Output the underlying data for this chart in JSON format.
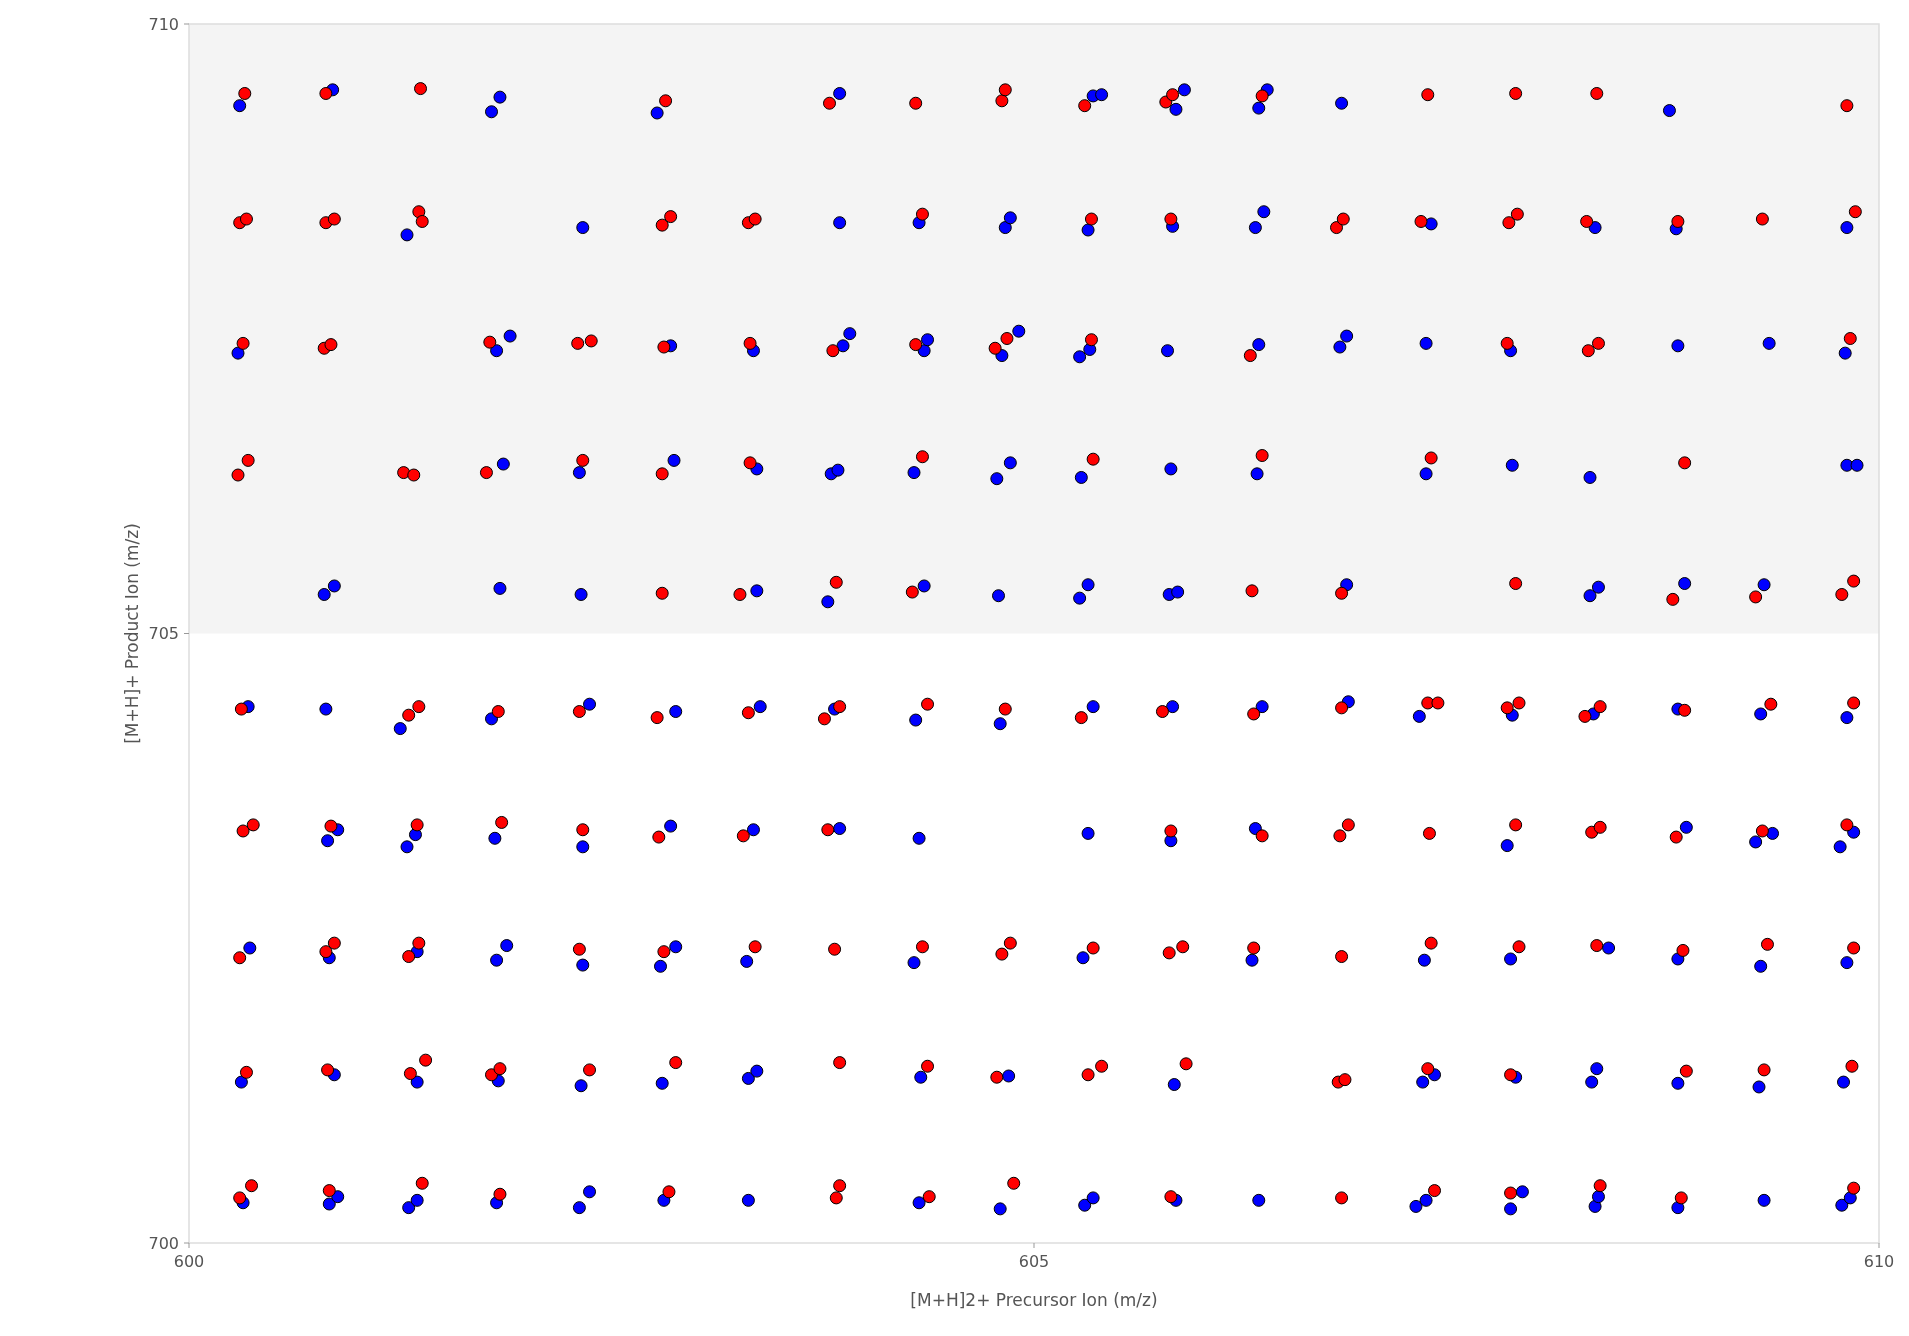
{
  "chart_data": {
    "type": "scatter",
    "xlabel": "[M+H]2+ Precursor Ion (m/z)",
    "ylabel": "[M+H]+ Product Ion (m/z)",
    "xlim": [
      600,
      610
    ],
    "ylim": [
      700,
      710
    ],
    "xticks": [
      600,
      605,
      610
    ],
    "yticks": [
      700,
      705,
      710
    ],
    "grid": false,
    "marker": "circle",
    "bands": [
      {
        "axis": "y",
        "from": 705,
        "to": 710,
        "color": "#f4f4f4"
      }
    ],
    "series": [
      {
        "color": "#0000ff",
        "x": [
          600.3,
          600.85,
          601.79,
          601.84,
          602.77,
          603.85,
          605.35,
          605.4,
          605.84,
          605.89,
          606.33,
          606.38,
          606.82,
          608.76,
          601.29,
          602.33,
          603.85,
          604.32,
          604.83,
          604.86,
          605.32,
          605.82,
          606.31,
          606.36,
          607.35,
          608.32,
          608.8,
          609.81,
          600.29,
          601.82,
          601.9,
          602.85,
          603.34,
          603.87,
          603.91,
          604.35,
          604.37,
          604.81,
          604.91,
          605.27,
          605.33,
          605.79,
          606.33,
          606.81,
          606.85,
          607.32,
          607.82,
          608.81,
          609.35,
          609.8,
          601.86,
          602.31,
          602.87,
          603.36,
          603.8,
          603.84,
          604.29,
          604.78,
          604.86,
          605.28,
          605.81,
          606.32,
          607.32,
          607.83,
          608.29,
          609.81,
          609.87,
          600.8,
          600.86,
          601.84,
          602.32,
          603.36,
          603.78,
          604.35,
          604.79,
          605.27,
          605.32,
          605.8,
          605.85,
          606.85,
          608.29,
          608.34,
          608.85,
          609.32,
          600.35,
          600.81,
          601.25,
          601.79,
          602.37,
          602.88,
          603.38,
          603.82,
          604.3,
          604.8,
          605.35,
          605.82,
          606.35,
          606.86,
          607.28,
          607.83,
          608.31,
          608.81,
          609.3,
          609.81,
          600.82,
          600.88,
          601.29,
          601.34,
          601.81,
          602.33,
          602.85,
          603.34,
          603.85,
          604.32,
          605.32,
          605.81,
          606.31,
          607.8,
          608.86,
          609.27,
          609.37,
          609.77,
          609.85,
          600.36,
          600.83,
          601.35,
          601.82,
          601.88,
          602.33,
          602.79,
          602.88,
          603.3,
          604.29,
          605.29,
          606.29,
          607.31,
          607.82,
          608.4,
          608.81,
          609.3,
          609.81,
          600.31,
          600.86,
          601.35,
          601.83,
          602.32,
          602.8,
          603.31,
          603.36,
          604.33,
          604.85,
          605.83,
          607.3,
          607.37,
          607.85,
          608.3,
          608.33,
          608.81,
          609.29,
          609.79,
          600.32,
          600.83,
          600.88,
          601.3,
          601.35,
          601.82,
          602.31,
          602.37,
          602.81,
          603.31,
          604.32,
          604.8,
          605.3,
          605.35,
          605.84,
          606.33,
          607.26,
          607.32,
          607.82,
          607.89,
          608.32,
          608.34,
          608.81,
          609.32,
          609.78,
          609.83
        ],
        "values": [
          709.33,
          709.46,
          709.28,
          709.4,
          709.27,
          709.43,
          709.41,
          709.42,
          709.3,
          709.46,
          709.31,
          709.46,
          709.35,
          709.29,
          708.27,
          708.33,
          708.37,
          708.37,
          708.33,
          708.41,
          708.31,
          708.34,
          708.33,
          708.46,
          708.36,
          708.33,
          708.32,
          708.33,
          707.3,
          707.32,
          707.44,
          707.36,
          707.32,
          707.36,
          707.46,
          707.32,
          707.41,
          707.28,
          707.48,
          707.27,
          707.33,
          707.32,
          707.37,
          707.35,
          707.44,
          707.38,
          707.32,
          707.36,
          707.38,
          707.3,
          706.39,
          706.32,
          706.42,
          706.35,
          706.31,
          706.34,
          706.32,
          706.27,
          706.4,
          706.28,
          706.35,
          706.31,
          706.31,
          706.38,
          706.28,
          706.38,
          706.38,
          705.32,
          705.39,
          705.37,
          705.32,
          705.35,
          705.26,
          705.39,
          705.31,
          705.29,
          705.4,
          705.32,
          705.34,
          705.4,
          705.31,
          705.38,
          705.41,
          705.4,
          704.4,
          704.38,
          704.22,
          704.3,
          704.42,
          704.36,
          704.4,
          704.38,
          704.29,
          704.26,
          704.4,
          704.4,
          704.4,
          704.44,
          704.32,
          704.33,
          704.34,
          704.38,
          704.34,
          704.31,
          703.3,
          703.39,
          703.25,
          703.35,
          703.32,
          703.25,
          703.42,
          703.39,
          703.4,
          703.32,
          703.36,
          703.3,
          703.4,
          703.26,
          703.41,
          703.29,
          703.36,
          703.25,
          703.37,
          702.42,
          702.34,
          702.39,
          702.32,
          702.44,
          702.28,
          702.27,
          702.43,
          702.31,
          702.3,
          702.34,
          702.32,
          702.32,
          702.33,
          702.42,
          702.33,
          702.27,
          702.3,
          701.32,
          701.38,
          701.32,
          701.33,
          701.29,
          701.31,
          701.35,
          701.41,
          701.36,
          701.37,
          701.3,
          701.32,
          701.38,
          701.36,
          701.32,
          701.43,
          701.31,
          701.28,
          701.32,
          700.33,
          700.32,
          700.38,
          700.29,
          700.35,
          700.33,
          700.29,
          700.42,
          700.35,
          700.35,
          700.33,
          700.28,
          700.31,
          700.37,
          700.35,
          700.35,
          700.3,
          700.35,
          700.28,
          700.42,
          700.3,
          700.38,
          700.29,
          700.35,
          700.31,
          700.37
        ]
      },
      {
        "color": "#ff0000",
        "x": [
          600.33,
          600.81,
          601.37,
          602.82,
          603.79,
          604.3,
          604.81,
          604.83,
          605.3,
          605.78,
          605.82,
          606.35,
          607.33,
          607.85,
          608.33,
          609.81,
          600.3,
          600.34,
          600.81,
          600.86,
          601.36,
          601.38,
          602.8,
          602.85,
          603.31,
          603.35,
          604.34,
          605.34,
          605.81,
          606.79,
          606.83,
          607.29,
          607.81,
          607.86,
          608.27,
          608.81,
          609.31,
          609.86,
          600.32,
          600.8,
          600.84,
          601.78,
          602.3,
          602.38,
          602.81,
          603.32,
          603.81,
          604.3,
          604.77,
          604.84,
          605.34,
          606.28,
          607.8,
          608.28,
          608.34,
          609.83,
          600.29,
          600.35,
          601.27,
          601.33,
          601.76,
          602.33,
          602.8,
          603.32,
          604.34,
          605.35,
          606.35,
          607.35,
          608.85,
          602.8,
          603.26,
          603.83,
          604.28,
          606.29,
          606.82,
          607.85,
          608.78,
          609.27,
          609.78,
          609.85,
          600.31,
          601.3,
          601.36,
          601.83,
          602.31,
          602.77,
          603.31,
          603.76,
          603.85,
          604.37,
          604.83,
          605.28,
          605.76,
          606.3,
          606.82,
          607.33,
          607.39,
          607.8,
          607.87,
          608.26,
          608.35,
          608.85,
          609.36,
          609.85,
          600.32,
          600.38,
          600.84,
          601.35,
          601.85,
          602.33,
          602.78,
          603.28,
          603.78,
          605.81,
          606.35,
          606.81,
          606.86,
          607.34,
          607.85,
          608.3,
          608.35,
          608.8,
          609.31,
          609.81,
          600.3,
          600.81,
          600.86,
          601.3,
          601.36,
          602.31,
          602.81,
          603.35,
          603.82,
          604.34,
          604.81,
          604.86,
          605.35,
          605.8,
          605.88,
          606.3,
          606.82,
          607.35,
          607.87,
          608.33,
          608.84,
          609.34,
          609.85,
          600.34,
          600.82,
          601.31,
          601.4,
          601.79,
          601.84,
          602.37,
          602.88,
          603.85,
          604.37,
          604.78,
          605.32,
          605.4,
          605.9,
          606.8,
          606.84,
          607.33,
          607.82,
          608.86,
          609.32,
          609.84,
          600.3,
          600.37,
          600.83,
          601.38,
          601.84,
          602.84,
          603.83,
          603.85,
          604.38,
          604.88,
          605.81,
          606.82,
          607.37,
          607.82,
          608.35,
          608.83,
          609.85
        ],
        "values": [
          709.43,
          709.43,
          709.47,
          709.37,
          709.35,
          709.35,
          709.37,
          709.46,
          709.33,
          709.36,
          709.42,
          709.41,
          709.42,
          709.43,
          709.43,
          709.33,
          708.37,
          708.4,
          708.37,
          708.4,
          708.46,
          708.38,
          708.35,
          708.42,
          708.37,
          708.4,
          708.44,
          708.4,
          708.4,
          708.33,
          708.4,
          708.38,
          708.37,
          708.44,
          708.38,
          708.38,
          708.4,
          708.46,
          707.38,
          707.34,
          707.37,
          707.39,
          707.38,
          707.4,
          707.35,
          707.38,
          707.32,
          707.37,
          707.34,
          707.42,
          707.41,
          707.28,
          707.38,
          707.32,
          707.38,
          707.42,
          706.3,
          706.42,
          706.32,
          706.3,
          706.32,
          706.42,
          706.31,
          706.4,
          706.45,
          706.43,
          706.46,
          706.44,
          706.4,
          705.33,
          705.32,
          705.42,
          705.34,
          705.35,
          705.33,
          705.41,
          705.28,
          705.3,
          705.32,
          705.43,
          704.38,
          704.33,
          704.4,
          704.36,
          704.36,
          704.31,
          704.35,
          704.3,
          704.4,
          704.42,
          704.38,
          704.31,
          704.36,
          704.34,
          704.39,
          704.43,
          704.43,
          704.39,
          704.43,
          704.32,
          704.4,
          704.37,
          704.42,
          704.43,
          703.38,
          703.43,
          703.42,
          703.43,
          703.45,
          703.39,
          703.33,
          703.34,
          703.39,
          703.38,
          703.34,
          703.34,
          703.43,
          703.36,
          703.43,
          703.37,
          703.41,
          703.33,
          703.38,
          703.43,
          702.34,
          702.39,
          702.46,
          702.35,
          702.46,
          702.41,
          702.39,
          702.43,
          702.41,
          702.43,
          702.37,
          702.46,
          702.42,
          702.38,
          702.43,
          702.42,
          702.35,
          702.46,
          702.43,
          702.44,
          702.4,
          702.45,
          702.42,
          701.4,
          701.42,
          701.39,
          701.5,
          701.38,
          701.43,
          701.42,
          701.48,
          701.48,
          701.45,
          701.36,
          701.38,
          701.45,
          701.47,
          701.32,
          701.34,
          701.43,
          701.38,
          701.41,
          701.42,
          701.45,
          700.37,
          700.47,
          700.43,
          700.49,
          700.4,
          700.42,
          700.37,
          700.47,
          700.38,
          700.49,
          700.38,
          700.37,
          700.43,
          700.41,
          700.47,
          700.37,
          700.45
        ]
      }
    ]
  }
}
